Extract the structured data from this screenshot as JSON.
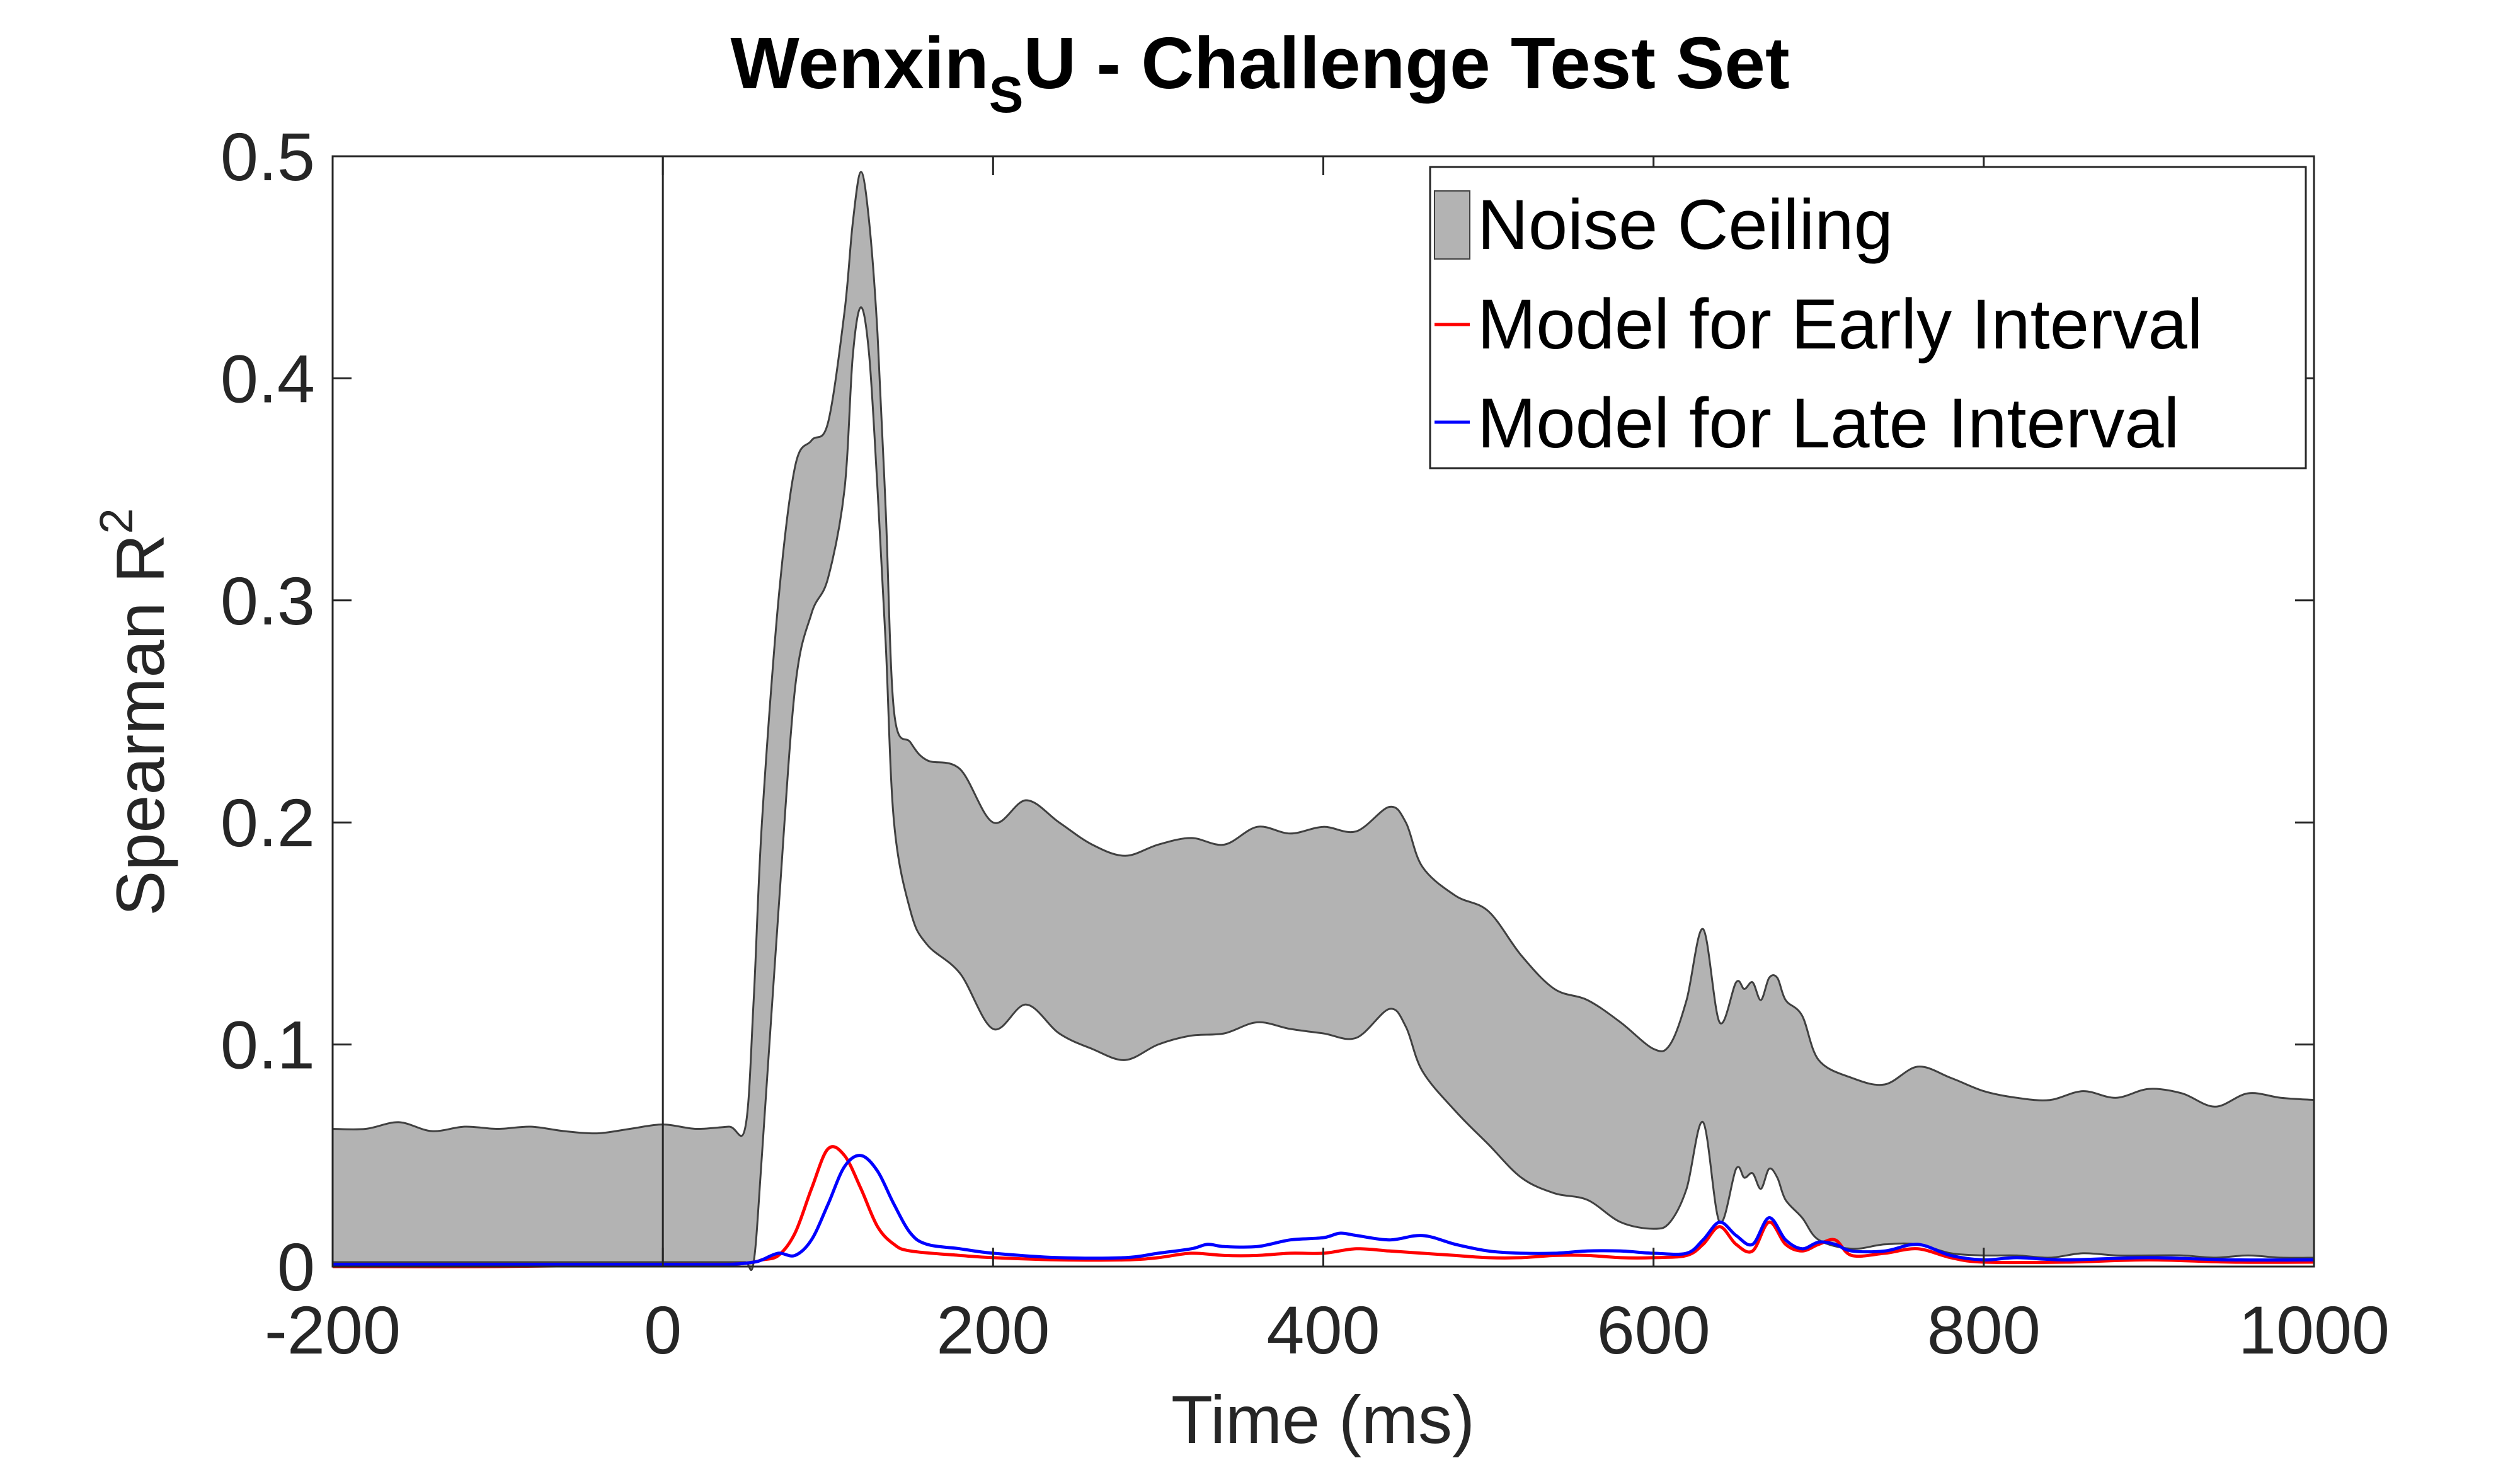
{
  "chart_data": {
    "type": "line",
    "title": {
      "main": "Wenxin",
      "subscript": "S",
      "rest": "U - Challenge Test Set"
    },
    "xlabel": "Time (ms)",
    "ylabel": {
      "text": "Spearman R",
      "superscript": "2"
    },
    "xlim": [
      -200,
      1000
    ],
    "ylim": [
      0,
      0.5
    ],
    "xticks": [
      -200,
      0,
      200,
      400,
      600,
      800,
      1000
    ],
    "xtick_labels": [
      "-200",
      "0",
      "200",
      "400",
      "600",
      "800",
      "1000"
    ],
    "yticks": [
      0,
      0.1,
      0.2,
      0.3,
      0.4,
      0.5
    ],
    "ytick_labels": [
      "0",
      "0.1",
      "0.2",
      "0.3",
      "0.4",
      "0.5"
    ],
    "grid": false,
    "legend_position": "top-right",
    "stimulus_onset_line": 0,
    "noise_ceiling": {
      "name": "Noise Ceiling",
      "color": "#b3b3b3",
      "edge_color": "#404040",
      "x": [
        -200,
        -180,
        -160,
        -140,
        -120,
        -100,
        -80,
        -60,
        -40,
        -20,
        0,
        20,
        40,
        50,
        55,
        60,
        70,
        80,
        90,
        100,
        110,
        115,
        120,
        125,
        130,
        135,
        140,
        150,
        160,
        180,
        200,
        220,
        240,
        260,
        280,
        300,
        320,
        340,
        360,
        380,
        400,
        420,
        440,
        450,
        460,
        480,
        500,
        520,
        540,
        560,
        580,
        600,
        610,
        620,
        630,
        640,
        650,
        655,
        660,
        665,
        670,
        675,
        680,
        690,
        700,
        720,
        740,
        760,
        780,
        800,
        820,
        840,
        860,
        880,
        900,
        920,
        940,
        960,
        980,
        1000
      ],
      "upper": [
        0.062,
        0.062,
        0.065,
        0.061,
        0.063,
        0.062,
        0.063,
        0.061,
        0.06,
        0.062,
        0.064,
        0.062,
        0.063,
        0.063,
        0.12,
        0.2,
        0.3,
        0.36,
        0.372,
        0.38,
        0.43,
        0.47,
        0.493,
        0.47,
        0.42,
        0.34,
        0.25,
        0.236,
        0.228,
        0.224,
        0.2,
        0.21,
        0.2,
        0.19,
        0.185,
        0.19,
        0.193,
        0.19,
        0.198,
        0.195,
        0.198,
        0.196,
        0.207,
        0.2,
        0.18,
        0.167,
        0.16,
        0.14,
        0.125,
        0.12,
        0.11,
        0.098,
        0.1,
        0.12,
        0.152,
        0.11,
        0.128,
        0.125,
        0.128,
        0.12,
        0.13,
        0.13,
        0.12,
        0.113,
        0.093,
        0.085,
        0.082,
        0.09,
        0.085,
        0.079,
        0.076,
        0.075,
        0.079,
        0.076,
        0.08,
        0.078,
        0.072,
        0.078,
        0.076,
        0.075
      ],
      "lower": [
        0.002,
        0.002,
        0.002,
        0.002,
        0.002,
        0.002,
        0.002,
        0.002,
        0.002,
        0.002,
        0.002,
        0.002,
        0.002,
        0.002,
        0.002,
        0.05,
        0.16,
        0.26,
        0.294,
        0.31,
        0.35,
        0.41,
        0.432,
        0.41,
        0.35,
        0.28,
        0.2,
        0.16,
        0.145,
        0.132,
        0.107,
        0.118,
        0.105,
        0.098,
        0.093,
        0.1,
        0.104,
        0.105,
        0.11,
        0.107,
        0.105,
        0.103,
        0.116,
        0.108,
        0.088,
        0.07,
        0.055,
        0.04,
        0.033,
        0.03,
        0.02,
        0.017,
        0.02,
        0.035,
        0.065,
        0.02,
        0.044,
        0.04,
        0.042,
        0.035,
        0.044,
        0.04,
        0.03,
        0.022,
        0.012,
        0.008,
        0.01,
        0.01,
        0.006,
        0.005,
        0.005,
        0.004,
        0.006,
        0.005,
        0.005,
        0.005,
        0.004,
        0.005,
        0.004,
        0.004
      ]
    },
    "series": [
      {
        "name": "Model for Early Interval",
        "color": "#ff0000",
        "x": [
          -200,
          -100,
          0,
          40,
          55,
          60,
          70,
          80,
          90,
          100,
          110,
          120,
          130,
          140,
          150,
          180,
          200,
          240,
          280,
          300,
          320,
          340,
          360,
          380,
          400,
          420,
          440,
          460,
          480,
          500,
          520,
          540,
          560,
          580,
          600,
          620,
          630,
          640,
          650,
          660,
          670,
          680,
          690,
          700,
          710,
          720,
          740,
          760,
          780,
          800,
          850,
          900,
          950,
          1000
        ],
        "values": [
          0.0,
          0.0,
          0.001,
          0.001,
          0.002,
          0.003,
          0.005,
          0.015,
          0.035,
          0.053,
          0.05,
          0.035,
          0.018,
          0.01,
          0.007,
          0.005,
          0.004,
          0.003,
          0.003,
          0.004,
          0.006,
          0.005,
          0.005,
          0.006,
          0.006,
          0.008,
          0.007,
          0.006,
          0.005,
          0.004,
          0.004,
          0.005,
          0.005,
          0.004,
          0.004,
          0.005,
          0.01,
          0.018,
          0.01,
          0.007,
          0.02,
          0.01,
          0.007,
          0.01,
          0.012,
          0.005,
          0.006,
          0.008,
          0.004,
          0.002,
          0.002,
          0.003,
          0.002,
          0.002
        ]
      },
      {
        "name": "Model for Late Interval",
        "color": "#0000ff",
        "x": [
          -200,
          -100,
          0,
          40,
          55,
          60,
          70,
          80,
          90,
          100,
          110,
          120,
          130,
          140,
          150,
          160,
          180,
          200,
          240,
          280,
          300,
          320,
          330,
          340,
          360,
          380,
          400,
          410,
          420,
          440,
          460,
          480,
          500,
          520,
          540,
          560,
          580,
          600,
          620,
          630,
          640,
          650,
          660,
          670,
          680,
          690,
          700,
          710,
          720,
          740,
          760,
          780,
          800,
          820,
          850,
          900,
          950,
          1000
        ],
        "values": [
          0.001,
          0.001,
          0.001,
          0.001,
          0.002,
          0.003,
          0.006,
          0.005,
          0.012,
          0.028,
          0.045,
          0.05,
          0.043,
          0.028,
          0.015,
          0.01,
          0.008,
          0.006,
          0.004,
          0.004,
          0.006,
          0.008,
          0.01,
          0.009,
          0.009,
          0.012,
          0.013,
          0.015,
          0.014,
          0.012,
          0.014,
          0.01,
          0.007,
          0.006,
          0.006,
          0.007,
          0.007,
          0.006,
          0.006,
          0.012,
          0.02,
          0.014,
          0.01,
          0.022,
          0.012,
          0.008,
          0.011,
          0.01,
          0.007,
          0.007,
          0.01,
          0.005,
          0.003,
          0.004,
          0.003,
          0.004,
          0.003,
          0.003
        ]
      }
    ]
  }
}
